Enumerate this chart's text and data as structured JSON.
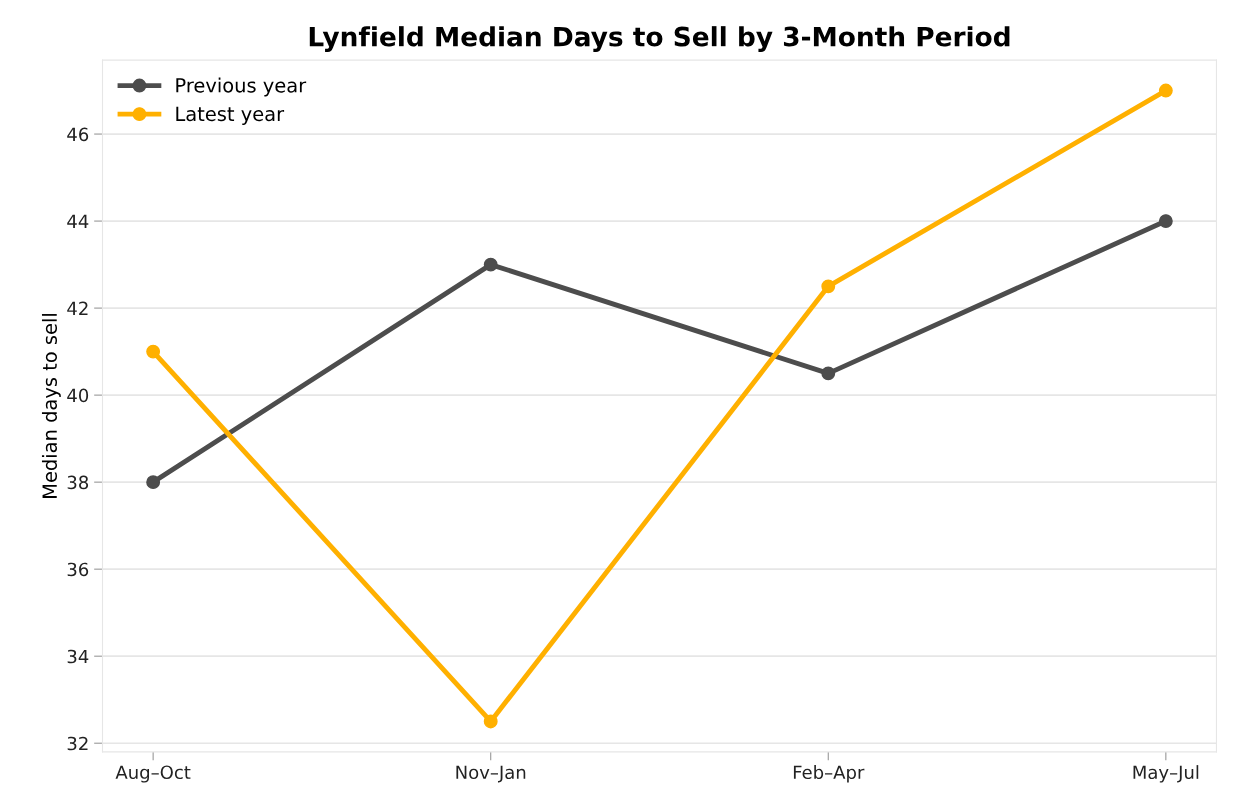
{
  "chart_data": {
    "type": "line",
    "title": "Lynfield Median Days to Sell by 3-Month Period",
    "ylabel": "Median days to sell",
    "categories": [
      "Aug–Oct",
      "Nov–Jan",
      "Feb–Apr",
      "May–Jul"
    ],
    "series": [
      {
        "name": "Previous year",
        "color": "#4d4d4d",
        "values": [
          38,
          43,
          40.5,
          44
        ]
      },
      {
        "name": "Latest year",
        "color": "#ffb000",
        "values": [
          41,
          32.5,
          42.5,
          47
        ]
      }
    ],
    "ylim": [
      31.8,
      47.7
    ],
    "yticks": [
      32,
      34,
      36,
      38,
      40,
      42,
      44,
      46
    ],
    "grid": "y",
    "legend": "top left",
    "marker": "circle",
    "line_style": "solid"
  }
}
